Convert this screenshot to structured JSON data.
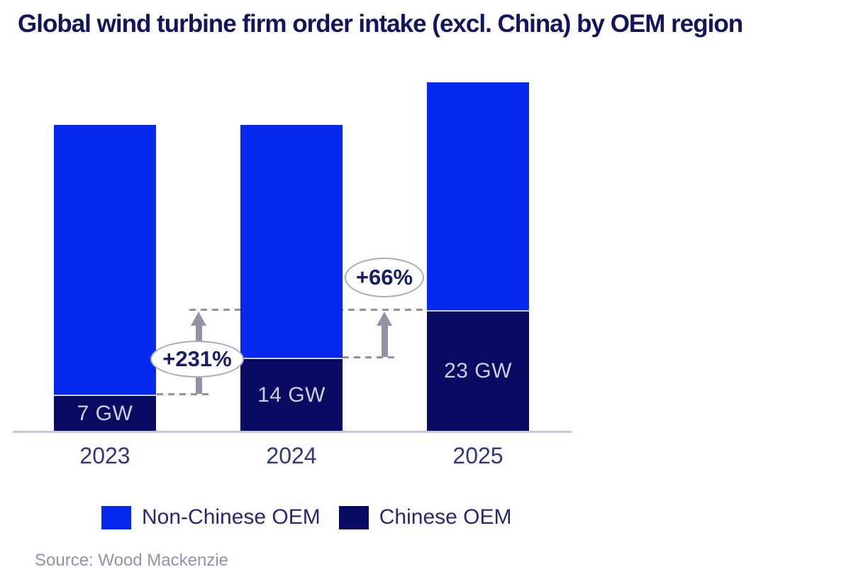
{
  "title": "Global wind turbine firm order intake (excl. China) by OEM region",
  "source_note": "Source: Wood Mackenzie",
  "colors": {
    "non_chinese": "#0629f0",
    "chinese": "#080b61",
    "title_text": "#11155e",
    "year_label_text": "#31367f",
    "bar_label_text": "#ccd0dc",
    "legend_text": "#232a72",
    "annotation_text": "#181d68",
    "annotation_gray": "#8f93a4",
    "axis_line": "#c5c7d5",
    "source_text": "#9094ac"
  },
  "legend": [
    {
      "label": "Non-Chinese OEM",
      "color": "#0629f0"
    },
    {
      "label": "Chinese OEM",
      "color": "#080b61"
    }
  ],
  "chart_data": {
    "type": "bar",
    "stacked": true,
    "title": "Global wind turbine firm order intake (excl. China) by OEM region",
    "unit": "GW",
    "categories": [
      "2023",
      "2024",
      "2025"
    ],
    "series": [
      {
        "name": "Non-Chinese OEM",
        "color": "#0629f0",
        "values": [
          51,
          44,
          43
        ],
        "values_estimated_from_pixels": true
      },
      {
        "name": "Chinese OEM",
        "color": "#080b61",
        "values": [
          7,
          14,
          23
        ],
        "data_labels": [
          "7 GW",
          "14 GW",
          "23 GW"
        ]
      }
    ],
    "annotations": [
      {
        "label": "+231%",
        "series": "Chinese OEM",
        "from_category": "2023",
        "from_value": 7,
        "to_category": "2025",
        "to_value": 23
      },
      {
        "label": "+66%",
        "series": "Chinese OEM",
        "from_category": "2024",
        "from_value": 14,
        "to_category": "2025",
        "to_value": 23
      }
    ],
    "grid": false,
    "y_axis_visible": false,
    "legend_position": "bottom",
    "ylim": [
      0,
      70
    ]
  }
}
